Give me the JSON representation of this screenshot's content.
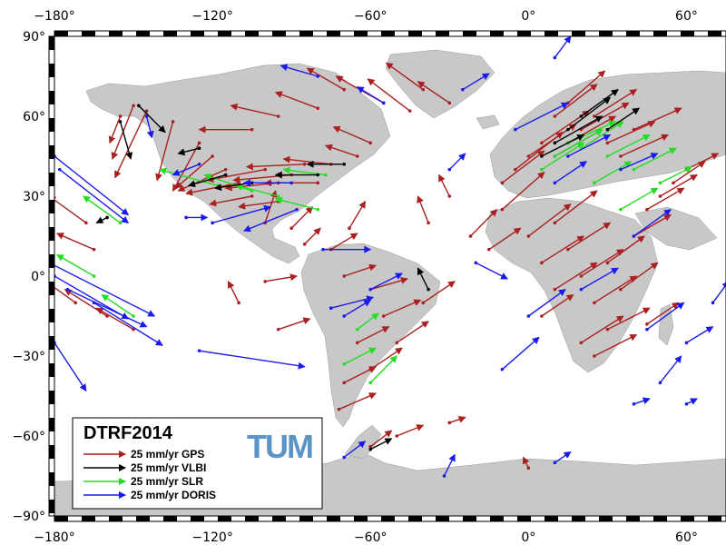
{
  "map": {
    "projection": "equirectangular",
    "lon_range": [
      -180,
      75
    ],
    "lat_range": [
      -90,
      90
    ],
    "land_color": "#c8c8c8",
    "ocean_color": "#ffffff",
    "frame_style": "black-white checker border"
  },
  "axes": {
    "lon_ticks": [
      {
        "value": -180,
        "label": "−180°"
      },
      {
        "value": -120,
        "label": "−120°"
      },
      {
        "value": -60,
        "label": "−60°"
      },
      {
        "value": 0,
        "label": "0°"
      },
      {
        "value": 60,
        "label": "60°"
      }
    ],
    "lat_ticks": [
      {
        "value": 90,
        "label": "90°"
      },
      {
        "value": 60,
        "label": "60°"
      },
      {
        "value": 30,
        "label": "30°"
      },
      {
        "value": 0,
        "label": "0°"
      },
      {
        "value": -30,
        "label": "−30°"
      },
      {
        "value": -60,
        "label": "−60°"
      },
      {
        "value": -90,
        "label": "−90°"
      }
    ]
  },
  "legend": {
    "title": "DTRF2014",
    "logo_text": "TUM",
    "logo_color": "#5b95c8",
    "entries": [
      {
        "label": "25 mm/yr GPS",
        "color": "#aa1f1f"
      },
      {
        "label": "25 mm/yr VLBI",
        "color": "#000000"
      },
      {
        "label": "25 mm/yr SLR",
        "color": "#22dd22"
      },
      {
        "label": "25 mm/yr DORIS",
        "color": "#1a1aee"
      }
    ]
  },
  "vectors": {
    "GPS": [
      {
        "lon": -145,
        "lat": 62,
        "dlon": -12,
        "dlat": -25
      },
      {
        "lon": -150,
        "lat": 64,
        "dlon": -8,
        "dlat": -20
      },
      {
        "lon": -135,
        "lat": 58,
        "dlon": -6,
        "dlat": -22
      },
      {
        "lon": -125,
        "lat": 50,
        "dlon": -10,
        "dlat": -18
      },
      {
        "lon": -120,
        "lat": 45,
        "dlon": -14,
        "dlat": -12
      },
      {
        "lon": -115,
        "lat": 40,
        "dlon": -18,
        "dlat": -8
      },
      {
        "lon": -110,
        "lat": 35,
        "dlon": -20,
        "dlat": -4
      },
      {
        "lon": -100,
        "lat": 40,
        "dlon": -22,
        "dlat": -4
      },
      {
        "lon": -95,
        "lat": 35,
        "dlon": -20,
        "dlat": -2
      },
      {
        "lon": -90,
        "lat": 38,
        "dlon": -22,
        "dlat": -2
      },
      {
        "lon": -85,
        "lat": 42,
        "dlon": -22,
        "dlat": -1
      },
      {
        "lon": -80,
        "lat": 35,
        "dlon": -20,
        "dlat": 0
      },
      {
        "lon": -75,
        "lat": 42,
        "dlon": -18,
        "dlat": 2
      },
      {
        "lon": -105,
        "lat": 30,
        "dlon": -16,
        "dlat": -3
      },
      {
        "lon": -95,
        "lat": 28,
        "dlon": -15,
        "dlat": -2
      },
      {
        "lon": -100,
        "lat": 20,
        "dlon": 4,
        "dlat": 12
      },
      {
        "lon": -90,
        "lat": 18,
        "dlon": 8,
        "dlat": 8
      },
      {
        "lon": -105,
        "lat": 55,
        "dlon": -20,
        "dlat": 0
      },
      {
        "lon": -95,
        "lat": 60,
        "dlon": -18,
        "dlat": 4
      },
      {
        "lon": -80,
        "lat": 63,
        "dlon": -16,
        "dlat": 6
      },
      {
        "lon": -70,
        "lat": 70,
        "dlon": -14,
        "dlat": 8
      },
      {
        "lon": -55,
        "lat": 65,
        "dlon": -18,
        "dlat": 10
      },
      {
        "lon": -45,
        "lat": 62,
        "dlon": -16,
        "dlat": 12
      },
      {
        "lon": -40,
        "lat": 70,
        "dlon": -14,
        "dlat": 10
      },
      {
        "lon": -30,
        "lat": 65,
        "dlon": -12,
        "dlat": 8
      },
      {
        "lon": -60,
        "lat": 50,
        "dlon": -14,
        "dlat": 6
      },
      {
        "lon": -65,
        "lat": 45,
        "dlon": -12,
        "dlat": 4
      },
      {
        "lon": -68,
        "lat": 18,
        "dlon": 6,
        "dlat": 10
      },
      {
        "lon": -75,
        "lat": 10,
        "dlon": 10,
        "dlat": 6
      },
      {
        "lon": -70,
        "lat": 0,
        "dlon": 12,
        "dlat": 4
      },
      {
        "lon": -60,
        "lat": -5,
        "dlon": 14,
        "dlat": 4
      },
      {
        "lon": -55,
        "lat": -15,
        "dlon": 14,
        "dlat": 6
      },
      {
        "lon": -50,
        "lat": -25,
        "dlon": 12,
        "dlat": 8
      },
      {
        "lon": -65,
        "lat": -25,
        "dlon": 12,
        "dlat": 6
      },
      {
        "lon": -60,
        "lat": -35,
        "dlon": 12,
        "dlat": 8
      },
      {
        "lon": -70,
        "lat": -40,
        "dlon": 12,
        "dlat": 6
      },
      {
        "lon": -72,
        "lat": -50,
        "dlon": 14,
        "dlat": 6
      },
      {
        "lon": -40,
        "lat": -10,
        "dlon": 12,
        "dlat": 8
      },
      {
        "lon": -38,
        "lat": 20,
        "dlon": -4,
        "dlat": 10
      },
      {
        "lon": -30,
        "lat": 30,
        "dlon": -4,
        "dlat": 8
      },
      {
        "lon": -5,
        "lat": 40,
        "dlon": 18,
        "dlat": 14
      },
      {
        "lon": 0,
        "lat": 45,
        "dlon": 18,
        "dlat": 12
      },
      {
        "lon": 5,
        "lat": 50,
        "dlon": 18,
        "dlat": 12
      },
      {
        "lon": 10,
        "lat": 45,
        "dlon": 18,
        "dlat": 10
      },
      {
        "lon": 15,
        "lat": 50,
        "dlon": 18,
        "dlat": 10
      },
      {
        "lon": 20,
        "lat": 55,
        "dlon": 18,
        "dlat": 10
      },
      {
        "lon": 25,
        "lat": 60,
        "dlon": 16,
        "dlat": 10
      },
      {
        "lon": 10,
        "lat": 60,
        "dlon": 16,
        "dlat": 12
      },
      {
        "lon": 15,
        "lat": 65,
        "dlon": 14,
        "dlat": 12
      },
      {
        "lon": 30,
        "lat": 50,
        "dlon": 18,
        "dlat": 8
      },
      {
        "lon": 35,
        "lat": 45,
        "dlon": 18,
        "dlat": 8
      },
      {
        "lon": 40,
        "lat": 55,
        "dlon": 18,
        "dlat": 8
      },
      {
        "lon": -10,
        "lat": 35,
        "dlon": 16,
        "dlat": 12
      },
      {
        "lon": -10,
        "lat": 25,
        "dlon": 16,
        "dlat": 14
      },
      {
        "lon": 0,
        "lat": 15,
        "dlon": 16,
        "dlat": 12
      },
      {
        "lon": 5,
        "lat": 5,
        "dlon": 16,
        "dlat": 10
      },
      {
        "lon": 10,
        "lat": 20,
        "dlon": 16,
        "dlat": 12
      },
      {
        "lon": 15,
        "lat": 10,
        "dlon": 16,
        "dlat": 10
      },
      {
        "lon": 20,
        "lat": 0,
        "dlon": 16,
        "dlat": 10
      },
      {
        "lon": 25,
        "lat": -10,
        "dlon": 16,
        "dlat": 10
      },
      {
        "lon": 30,
        "lat": -20,
        "dlon": 16,
        "dlat": 8
      },
      {
        "lon": 25,
        "lat": -30,
        "dlon": 16,
        "dlat": 8
      },
      {
        "lon": 30,
        "lat": 5,
        "dlon": 14,
        "dlat": 10
      },
      {
        "lon": 35,
        "lat": -5,
        "dlon": 14,
        "dlat": 10
      },
      {
        "lon": 20,
        "lat": -25,
        "dlon": 16,
        "dlat": 10
      },
      {
        "lon": 40,
        "lat": 15,
        "dlon": 14,
        "dlat": 8
      },
      {
        "lon": 45,
        "lat": 25,
        "dlon": 14,
        "dlat": 8
      },
      {
        "lon": 50,
        "lat": 30,
        "dlon": 14,
        "dlat": 8
      },
      {
        "lon": 55,
        "lat": 35,
        "dlon": 12,
        "dlat": 8
      },
      {
        "lon": 60,
        "lat": 40,
        "dlon": 12,
        "dlat": 6
      },
      {
        "lon": 45,
        "lat": -18,
        "dlon": 12,
        "dlat": 8
      },
      {
        "lon": 10,
        "lat": -5,
        "dlon": 16,
        "dlat": 10
      },
      {
        "lon": 5,
        "lat": -15,
        "dlon": 12,
        "dlat": 8
      },
      {
        "lon": -15,
        "lat": 10,
        "dlon": 12,
        "dlat": 8
      },
      {
        "lon": -22,
        "lat": 15,
        "dlon": 10,
        "dlat": 10
      },
      {
        "lon": -168,
        "lat": 20,
        "dlon": -14,
        "dlat": 10
      },
      {
        "lon": -172,
        "lat": -10,
        "dlon": -14,
        "dlat": 10
      },
      {
        "lon": -160,
        "lat": -15,
        "dlon": -16,
        "dlat": 10
      },
      {
        "lon": -150,
        "lat": -20,
        "dlon": -14,
        "dlat": 8
      },
      {
        "lon": -165,
        "lat": 10,
        "dlon": -14,
        "dlat": 6
      },
      {
        "lon": -155,
        "lat": 60,
        "dlon": -4,
        "dlat": -10
      },
      {
        "lon": -85,
        "lat": 12,
        "dlon": 6,
        "dlat": 6
      },
      {
        "lon": -100,
        "lat": -2,
        "dlon": 12,
        "dlat": 2
      },
      {
        "lon": -95,
        "lat": -20,
        "dlon": 12,
        "dlat": 4
      },
      {
        "lon": -110,
        "lat": -10,
        "dlon": -4,
        "dlat": 8
      },
      {
        "lon": 0,
        "lat": -72,
        "dlon": -2,
        "dlat": 4
      },
      {
        "lon": -50,
        "lat": -60,
        "dlon": 10,
        "dlat": 4
      },
      {
        "lon": -60,
        "lat": -64,
        "dlon": 8,
        "dlat": 6
      },
      {
        "lon": -30,
        "lat": -55,
        "dlon": 6,
        "dlat": 2
      }
    ],
    "VLBI": [
      {
        "lon": -148,
        "lat": 64,
        "dlon": 10,
        "dlat": -10
      },
      {
        "lon": -155,
        "lat": 58,
        "dlon": 4,
        "dlat": -14
      },
      {
        "lon": -125,
        "lat": 48,
        "dlon": -8,
        "dlat": -2
      },
      {
        "lon": -115,
        "lat": 38,
        "dlon": -14,
        "dlat": -4
      },
      {
        "lon": -105,
        "lat": 35,
        "dlon": -14,
        "dlat": -2
      },
      {
        "lon": -80,
        "lat": 38,
        "dlon": -16,
        "dlat": 0
      },
      {
        "lon": -70,
        "lat": 42,
        "dlon": -14,
        "dlat": 0
      },
      {
        "lon": -160,
        "lat": 22,
        "dlon": -4,
        "dlat": -2
      },
      {
        "lon": -38,
        "lat": -5,
        "dlon": -4,
        "dlat": 8
      },
      {
        "lon": 10,
        "lat": 50,
        "dlon": 18,
        "dlat": 10
      },
      {
        "lon": 15,
        "lat": 55,
        "dlon": 16,
        "dlat": 12
      },
      {
        "lon": 20,
        "lat": 60,
        "dlon": 14,
        "dlat": 10
      },
      {
        "lon": 30,
        "lat": 55,
        "dlon": 12,
        "dlat": 8
      },
      {
        "lon": 5,
        "lat": 45,
        "dlon": 16,
        "dlat": 8
      },
      {
        "lon": -60,
        "lat": -65,
        "dlon": 8,
        "dlat": 4
      }
    ],
    "SLR": [
      {
        "lon": -118,
        "lat": 34,
        "dlon": -22,
        "dlat": 6
      },
      {
        "lon": -105,
        "lat": 32,
        "dlon": -18,
        "dlat": 6
      },
      {
        "lon": -95,
        "lat": 30,
        "dlon": -16,
        "dlat": 4
      },
      {
        "lon": -77,
        "lat": 38,
        "dlon": -16,
        "dlat": 2
      },
      {
        "lon": -80,
        "lat": 25,
        "dlon": -16,
        "dlat": 4
      },
      {
        "lon": -155,
        "lat": 20,
        "dlon": -14,
        "dlat": 10
      },
      {
        "lon": -165,
        "lat": 0,
        "dlon": -14,
        "dlat": 8
      },
      {
        "lon": -150,
        "lat": -15,
        "dlon": -12,
        "dlat": 8
      },
      {
        "lon": -70,
        "lat": -33,
        "dlon": 12,
        "dlat": 6
      },
      {
        "lon": -65,
        "lat": -20,
        "dlon": 8,
        "dlat": 6
      },
      {
        "lon": -60,
        "lat": -40,
        "dlon": 10,
        "dlat": 10
      },
      {
        "lon": 10,
        "lat": 45,
        "dlon": 18,
        "dlat": 10
      },
      {
        "lon": 15,
        "lat": 50,
        "dlon": 18,
        "dlat": 8
      },
      {
        "lon": 20,
        "lat": 48,
        "dlon": 16,
        "dlat": 10
      },
      {
        "lon": 30,
        "lat": 45,
        "dlon": 16,
        "dlat": 8
      },
      {
        "lon": 25,
        "lat": 35,
        "dlon": 14,
        "dlat": 8
      },
      {
        "lon": 40,
        "lat": 40,
        "dlon": 16,
        "dlat": 8
      },
      {
        "lon": 50,
        "lat": 35,
        "dlon": 12,
        "dlat": 6
      },
      {
        "lon": 5,
        "lat": 40,
        "dlon": 16,
        "dlat": 10
      },
      {
        "lon": 35,
        "lat": 25,
        "dlon": 14,
        "dlat": 8
      }
    ],
    "DORIS": [
      {
        "lon": -145,
        "lat": 60,
        "dlon": 2,
        "dlat": -8
      },
      {
        "lon": -125,
        "lat": 42,
        "dlon": -10,
        "dlat": -4
      },
      {
        "lon": -90,
        "lat": 35,
        "dlon": -18,
        "dlat": 0
      },
      {
        "lon": -130,
        "lat": 22,
        "dlon": 8,
        "dlat": 0
      },
      {
        "lon": -88,
        "lat": 25,
        "dlon": -20,
        "dlat": -8
      },
      {
        "lon": -180,
        "lat": 45,
        "dlon": 28,
        "dlat": -22
      },
      {
        "lon": -178,
        "lat": 40,
        "dlon": 26,
        "dlat": -20
      },
      {
        "lon": -182,
        "lat": 5,
        "dlon": 40,
        "dlat": -20
      },
      {
        "lon": -180,
        "lat": 0,
        "dlon": 28,
        "dlat": -16
      },
      {
        "lon": -175,
        "lat": -5,
        "dlon": 30,
        "dlat": -14
      },
      {
        "lon": -180,
        "lat": -25,
        "dlon": 12,
        "dlat": -18
      },
      {
        "lon": -165,
        "lat": -10,
        "dlon": 26,
        "dlat": -16
      },
      {
        "lon": -120,
        "lat": 20,
        "dlon": 22,
        "dlat": 6
      },
      {
        "lon": -78,
        "lat": 10,
        "dlon": 18,
        "dlat": 0
      },
      {
        "lon": -60,
        "lat": -5,
        "dlon": 12,
        "dlat": 6
      },
      {
        "lon": -75,
        "lat": -12,
        "dlon": 16,
        "dlat": 4
      },
      {
        "lon": -125,
        "lat": -28,
        "dlon": 40,
        "dlat": -6
      },
      {
        "lon": -70,
        "lat": -15,
        "dlon": 10,
        "dlat": 6
      },
      {
        "lon": -30,
        "lat": 40,
        "dlon": 6,
        "dlat": 6
      },
      {
        "lon": -5,
        "lat": 55,
        "dlon": 20,
        "dlat": 10
      },
      {
        "lon": 15,
        "lat": 45,
        "dlon": 16,
        "dlat": 8
      },
      {
        "lon": 10,
        "lat": 35,
        "dlon": 12,
        "dlat": 8
      },
      {
        "lon": 35,
        "lat": 40,
        "dlon": 14,
        "dlat": 6
      },
      {
        "lon": 40,
        "lat": 15,
        "dlon": 14,
        "dlat": 10
      },
      {
        "lon": 0,
        "lat": -15,
        "dlon": 14,
        "dlat": 10
      },
      {
        "lon": -10,
        "lat": -35,
        "dlon": 14,
        "dlat": 12
      },
      {
        "lon": 20,
        "lat": -5,
        "dlon": 14,
        "dlat": 8
      },
      {
        "lon": 45,
        "lat": -20,
        "dlon": 14,
        "dlat": 10
      },
      {
        "lon": 50,
        "lat": -40,
        "dlon": 8,
        "dlat": 10
      },
      {
        "lon": 60,
        "lat": -25,
        "dlon": 10,
        "dlat": 6
      },
      {
        "lon": 70,
        "lat": -10,
        "dlon": 6,
        "dlat": 8
      },
      {
        "lon": 40,
        "lat": -48,
        "dlon": 6,
        "dlat": 2
      },
      {
        "lon": 60,
        "lat": -48,
        "dlon": 4,
        "dlat": 2
      },
      {
        "lon": 10,
        "lat": 82,
        "dlon": 6,
        "dlat": 8
      },
      {
        "lon": -25,
        "lat": 70,
        "dlon": 10,
        "dlat": 6
      },
      {
        "lon": -80,
        "lat": 75,
        "dlon": -14,
        "dlat": 4
      },
      {
        "lon": -55,
        "lat": 65,
        "dlon": -10,
        "dlat": 6
      },
      {
        "lon": -70,
        "lat": -68,
        "dlon": 8,
        "dlat": 6
      },
      {
        "lon": -32,
        "lat": -75,
        "dlon": 4,
        "dlat": 8
      },
      {
        "lon": 10,
        "lat": -70,
        "dlon": 6,
        "dlat": 4
      },
      {
        "lon": -20,
        "lat": 5,
        "dlon": 12,
        "dlat": -6
      }
    ]
  }
}
